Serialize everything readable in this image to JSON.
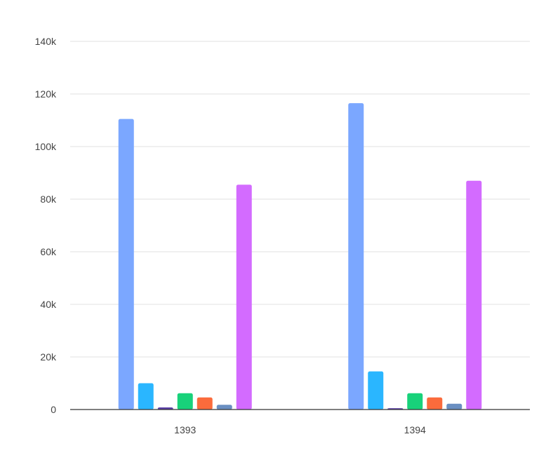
{
  "chart_data": {
    "type": "bar",
    "title": "",
    "xlabel": "",
    "ylabel": "",
    "categories": [
      "1393",
      "1394"
    ],
    "ylim": [
      0,
      140000
    ],
    "yticks": [
      0,
      20000,
      40000,
      60000,
      80000,
      100000,
      120000,
      140000
    ],
    "ytick_labels": [
      "0",
      "20k",
      "40k",
      "60k",
      "80k",
      "100k",
      "120k",
      "140k"
    ],
    "grid": true,
    "legend": "none",
    "series": [
      {
        "color": "#7ba7ff",
        "values": [
          110500,
          116500
        ]
      },
      {
        "color": "#2ab6ff",
        "values": [
          10000,
          14500
        ]
      },
      {
        "color": "#5b3fa6",
        "values": [
          800,
          500
        ]
      },
      {
        "color": "#18d27a",
        "values": [
          6200,
          6200
        ]
      },
      {
        "color": "#fb6b3c",
        "values": [
          4600,
          4600
        ]
      },
      {
        "color": "#6a8fc2",
        "values": [
          1800,
          2200
        ]
      },
      {
        "color": "#d36bff",
        "values": [
          85500,
          87000
        ]
      }
    ]
  }
}
